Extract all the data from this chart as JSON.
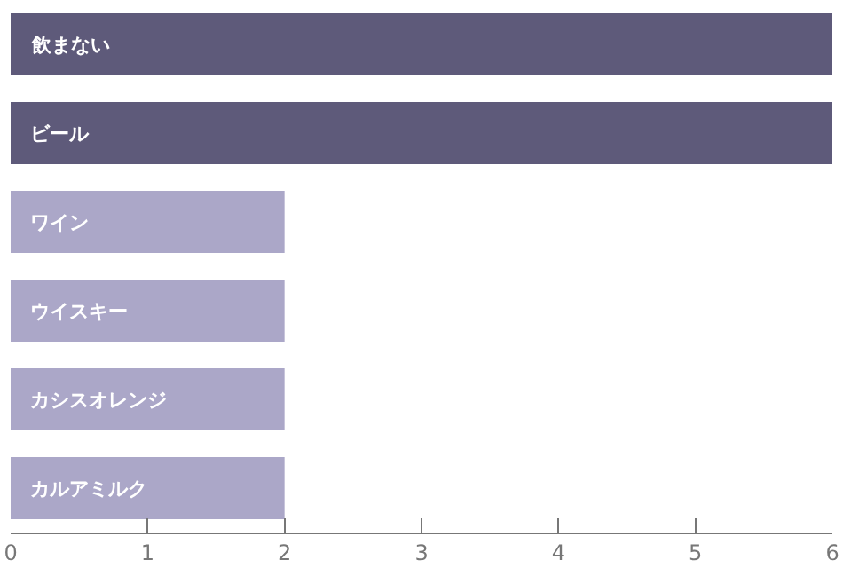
{
  "chart_data": {
    "type": "bar",
    "orientation": "horizontal",
    "categories": [
      "飲まない",
      "ビール",
      "ワイン",
      "ウイスキー",
      "カシスオレンジ",
      "カルアミルク"
    ],
    "values": [
      6,
      6,
      2,
      2,
      2,
      2
    ],
    "colors": [
      "#5e5a7a",
      "#5e5a7a",
      "#aba7c8",
      "#aba7c8",
      "#aba7c8",
      "#aba7c8"
    ],
    "xlim": [
      0,
      6
    ],
    "xticks": [
      0,
      1,
      2,
      3,
      4,
      5,
      6
    ],
    "grid": false
  }
}
